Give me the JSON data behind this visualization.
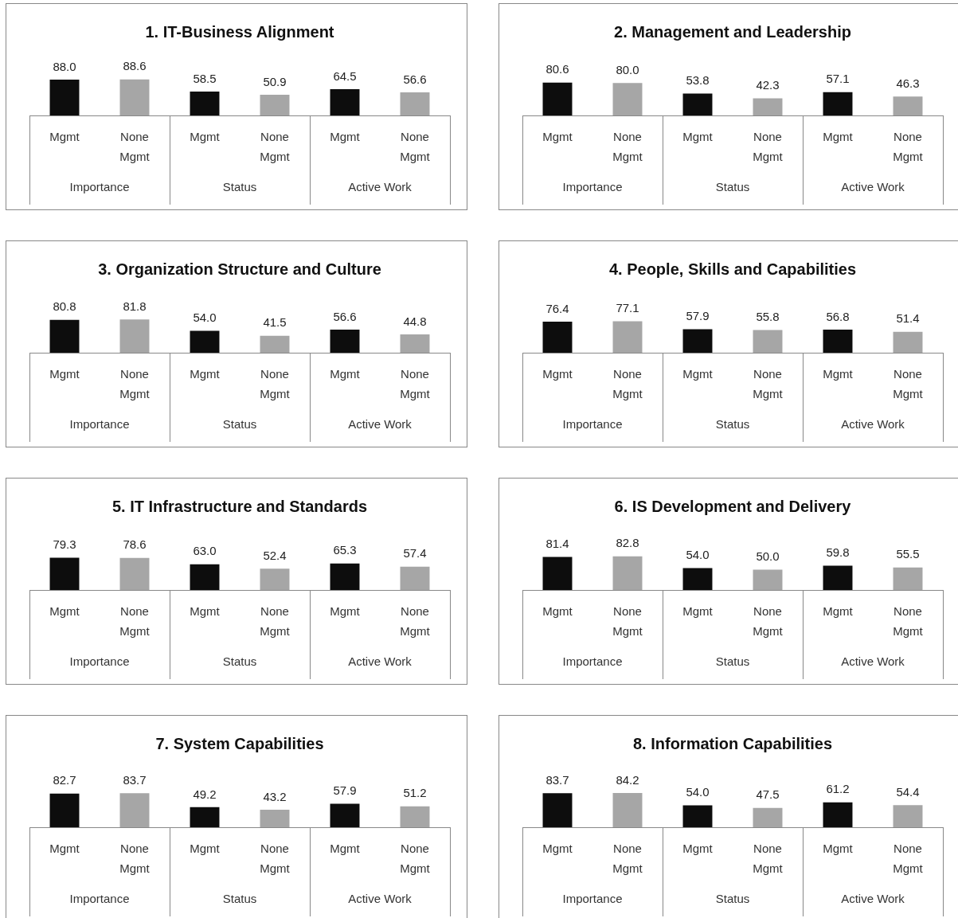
{
  "chart_data": [
    {
      "type": "bar",
      "title": "1. IT-Business Alignment",
      "categories": [
        "Importance",
        "Status",
        "Active Work"
      ],
      "series": [
        {
          "name": "Mgmt",
          "color": "#0d0d0d",
          "values": [
            88.0,
            58.5,
            64.5
          ],
          "value_labels": [
            "88.0",
            "58.5",
            "64.5"
          ]
        },
        {
          "name": "None Mgmt",
          "color": "#a6a6a6",
          "values": [
            88.6,
            50.9,
            56.6
          ],
          "value_labels": [
            "88.6",
            "50.9",
            "56.6"
          ]
        }
      ]
    },
    {
      "type": "bar",
      "title": "2. Management and Leadership",
      "categories": [
        "Importance",
        "Status",
        "Active Work"
      ],
      "series": [
        {
          "name": "Mgmt",
          "color": "#0d0d0d",
          "values": [
            80.6,
            53.8,
            57.1
          ],
          "value_labels": [
            "80.6",
            "53.8",
            "57.1"
          ]
        },
        {
          "name": "None Mgmt",
          "color": "#a6a6a6",
          "values": [
            80.0,
            42.3,
            46.3
          ],
          "value_labels": [
            "80.0",
            "42.3",
            "46.3"
          ]
        }
      ]
    },
    {
      "type": "bar",
      "title": "3. Organization Structure and Culture",
      "categories": [
        "Importance",
        "Status",
        "Active Work"
      ],
      "series": [
        {
          "name": "Mgmt",
          "color": "#0d0d0d",
          "values": [
            80.8,
            54.0,
            56.6
          ],
          "value_labels": [
            "80.8",
            "54.0",
            "56.6"
          ]
        },
        {
          "name": "None Mgmt",
          "color": "#a6a6a6",
          "values": [
            81.8,
            41.5,
            44.8
          ],
          "value_labels": [
            "81.8",
            "41.5",
            "44.8"
          ]
        }
      ]
    },
    {
      "type": "bar",
      "title": "4. People, Skills and Capabilities",
      "categories": [
        "Importance",
        "Status",
        "Active Work"
      ],
      "series": [
        {
          "name": "Mgmt",
          "color": "#0d0d0d",
          "values": [
            76.4,
            57.9,
            56.8
          ],
          "value_labels": [
            "76.4",
            "57.9",
            "56.8"
          ]
        },
        {
          "name": "None Mgmt",
          "color": "#a6a6a6",
          "values": [
            77.1,
            55.8,
            51.4
          ],
          "value_labels": [
            "77.1",
            "55.8",
            "51.4"
          ]
        }
      ]
    },
    {
      "type": "bar",
      "title": "5. IT Infrastructure and Standards",
      "categories": [
        "Importance",
        "Status",
        "Active Work"
      ],
      "series": [
        {
          "name": "Mgmt",
          "color": "#0d0d0d",
          "values": [
            79.3,
            63.0,
            65.3
          ],
          "value_labels": [
            "79.3",
            "63.0",
            "65.3"
          ]
        },
        {
          "name": "None Mgmt",
          "color": "#a6a6a6",
          "values": [
            78.6,
            52.4,
            57.4
          ],
          "value_labels": [
            "78.6",
            "52.4",
            "57.4"
          ]
        }
      ]
    },
    {
      "type": "bar",
      "title": "6. IS Development and Delivery",
      "categories": [
        "Importance",
        "Status",
        "Active Work"
      ],
      "series": [
        {
          "name": "Mgmt",
          "color": "#0d0d0d",
          "values": [
            81.4,
            54.0,
            59.8
          ],
          "value_labels": [
            "81.4",
            "54.0",
            "59.8"
          ]
        },
        {
          "name": "None Mgmt",
          "color": "#a6a6a6",
          "values": [
            82.8,
            50.0,
            55.5
          ],
          "value_labels": [
            "82.8",
            "50.0",
            "55.5"
          ]
        }
      ]
    },
    {
      "type": "bar",
      "title": "7. System Capabilities",
      "categories": [
        "Importance",
        "Status",
        "Active Work"
      ],
      "series": [
        {
          "name": "Mgmt",
          "color": "#0d0d0d",
          "values": [
            82.7,
            49.2,
            57.9
          ],
          "value_labels": [
            "82.7",
            "49.2",
            "57.9"
          ]
        },
        {
          "name": "None Mgmt",
          "color": "#a6a6a6",
          "values": [
            83.7,
            43.2,
            51.2
          ],
          "value_labels": [
            "83.7",
            "43.2",
            "51.2"
          ]
        }
      ]
    },
    {
      "type": "bar",
      "title": "8. Information Capabilities",
      "categories": [
        "Importance",
        "Status",
        "Active Work"
      ],
      "series": [
        {
          "name": "Mgmt",
          "color": "#0d0d0d",
          "values": [
            83.7,
            54.0,
            61.2
          ],
          "value_labels": [
            "83.7",
            "54.0",
            "61.2"
          ]
        },
        {
          "name": "None Mgmt",
          "color": "#a6a6a6",
          "values": [
            84.2,
            47.5,
            54.4
          ],
          "value_labels": [
            "84.2",
            "47.5",
            "54.4"
          ]
        }
      ]
    }
  ]
}
